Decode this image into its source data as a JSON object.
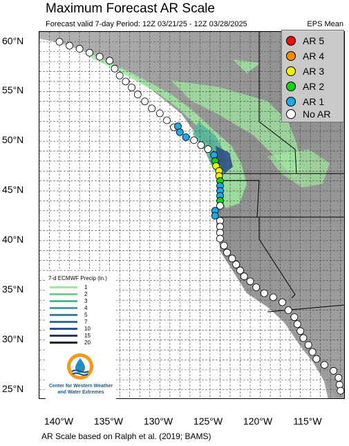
{
  "header": {
    "title": "Maximum Forecast AR Scale",
    "subtitle": "Forecast valid 7-day Period: 12Z 03/21/25 - 12Z 03/28/2025",
    "variant": "EPS Mean"
  },
  "axes": {
    "lat_labels": [
      "60°N",
      "55°N",
      "50°N",
      "45°N",
      "40°N",
      "35°N",
      "30°N",
      "25°N"
    ],
    "lon_labels": [
      "140°W",
      "135°W",
      "130°W",
      "125°W",
      "120°W",
      "115°W"
    ],
    "extent": {
      "lon_min": -142,
      "lon_max": -111.5,
      "lat_min": 24.0,
      "lat_max": 61.0
    }
  },
  "legend": {
    "items": [
      {
        "label": "AR 5",
        "color": "#e8120c"
      },
      {
        "label": "AR 4",
        "color": "#f08c00"
      },
      {
        "label": "AR 3",
        "color": "#f2f200"
      },
      {
        "label": "AR 2",
        "color": "#18d018"
      },
      {
        "label": "AR 1",
        "color": "#1ea8e8"
      },
      {
        "label": "No AR",
        "color": "#ffffff"
      }
    ]
  },
  "precip_legend": {
    "title": "7-d ECMWF Precip (in.)",
    "items": [
      {
        "label": "1",
        "color": "#9fe8a0"
      },
      {
        "label": "2",
        "color": "#6fcf9a"
      },
      {
        "label": "3",
        "color": "#56b69a"
      },
      {
        "label": "4",
        "color": "#4a9f9c"
      },
      {
        "label": "5",
        "color": "#3f869c"
      },
      {
        "label": "7",
        "color": "#366b98"
      },
      {
        "label": "10",
        "color": "#2d508c"
      },
      {
        "label": "15",
        "color": "#28356f"
      },
      {
        "label": "20",
        "color": "#1b1b3a"
      }
    ]
  },
  "logo": {
    "name_line1": "Center for Western Weather",
    "name_line2": "and Water Extremes"
  },
  "footer": "AR Scale based on Ralph et al. (2019; BAMS)",
  "ar_points": [
    {
      "lon": -140.0,
      "lat": 60.0,
      "ar": "No AR"
    },
    {
      "lon": -139.0,
      "lat": 59.6,
      "ar": "No AR"
    },
    {
      "lon": -138.0,
      "lat": 59.3,
      "ar": "No AR"
    },
    {
      "lon": -137.0,
      "lat": 58.9,
      "ar": "No AR"
    },
    {
      "lon": -136.0,
      "lat": 58.5,
      "ar": "No AR"
    },
    {
      "lon": -135.0,
      "lat": 58.1,
      "ar": "No AR"
    },
    {
      "lon": -134.5,
      "lat": 57.3,
      "ar": "No AR"
    },
    {
      "lon": -134.0,
      "lat": 56.6,
      "ar": "No AR"
    },
    {
      "lon": -133.4,
      "lat": 56.0,
      "ar": "No AR"
    },
    {
      "lon": -132.8,
      "lat": 55.4,
      "ar": "No AR"
    },
    {
      "lon": -132.2,
      "lat": 54.7,
      "ar": "No AR"
    },
    {
      "lon": -131.5,
      "lat": 54.0,
      "ar": "No AR"
    },
    {
      "lon": -130.8,
      "lat": 53.3,
      "ar": "No AR"
    },
    {
      "lon": -130.0,
      "lat": 52.8,
      "ar": "No AR"
    },
    {
      "lon": -129.3,
      "lat": 52.1,
      "ar": "No AR"
    },
    {
      "lon": -128.6,
      "lat": 51.4,
      "ar": "No AR"
    },
    {
      "lon": -128.2,
      "lat": 51.5,
      "ar": "AR 1"
    },
    {
      "lon": -128.0,
      "lat": 50.9,
      "ar": "AR 1"
    },
    {
      "lon": -127.4,
      "lat": 50.4,
      "ar": "AR 1"
    },
    {
      "lon": -126.6,
      "lat": 50.1,
      "ar": "No AR"
    },
    {
      "lon": -125.9,
      "lat": 49.6,
      "ar": "No AR"
    },
    {
      "lon": -125.2,
      "lat": 49.2,
      "ar": "No AR"
    },
    {
      "lon": -124.6,
      "lat": 48.6,
      "ar": "AR 1"
    },
    {
      "lon": -124.5,
      "lat": 48.0,
      "ar": "AR 2"
    },
    {
      "lon": -124.4,
      "lat": 47.5,
      "ar": "AR 3"
    },
    {
      "lon": -124.1,
      "lat": 47.0,
      "ar": "AR 3"
    },
    {
      "lon": -124.1,
      "lat": 46.5,
      "ar": "AR 3"
    },
    {
      "lon": -124.0,
      "lat": 46.0,
      "ar": "AR 2"
    },
    {
      "lon": -124.0,
      "lat": 45.5,
      "ar": "AR 1"
    },
    {
      "lon": -124.0,
      "lat": 45.0,
      "ar": "AR 1"
    },
    {
      "lon": -124.0,
      "lat": 44.5,
      "ar": "AR 1"
    },
    {
      "lon": -124.0,
      "lat": 44.0,
      "ar": "AR 2"
    },
    {
      "lon": -124.0,
      "lat": 43.5,
      "ar": "No AR"
    },
    {
      "lon": -124.5,
      "lat": 43.0,
      "ar": "AR 1"
    },
    {
      "lon": -124.5,
      "lat": 42.5,
      "ar": "AR 1"
    },
    {
      "lon": -124.0,
      "lat": 42.0,
      "ar": "No AR"
    },
    {
      "lon": -124.0,
      "lat": 41.4,
      "ar": "No AR"
    },
    {
      "lon": -124.0,
      "lat": 40.8,
      "ar": "No AR"
    },
    {
      "lon": -124.0,
      "lat": 40.2,
      "ar": "No AR"
    },
    {
      "lon": -123.6,
      "lat": 39.5,
      "ar": "No AR"
    },
    {
      "lon": -123.3,
      "lat": 38.8,
      "ar": "No AR"
    },
    {
      "lon": -122.8,
      "lat": 38.2,
      "ar": "No AR"
    },
    {
      "lon": -122.4,
      "lat": 37.6,
      "ar": "No AR"
    },
    {
      "lon": -122.0,
      "lat": 37.0,
      "ar": "No AR"
    },
    {
      "lon": -121.6,
      "lat": 36.4,
      "ar": "No AR"
    },
    {
      "lon": -121.0,
      "lat": 35.9,
      "ar": "No AR"
    },
    {
      "lon": -120.4,
      "lat": 35.3,
      "ar": "No AR"
    },
    {
      "lon": -119.6,
      "lat": 34.7,
      "ar": "No AR"
    },
    {
      "lon": -118.7,
      "lat": 34.3,
      "ar": "No AR"
    },
    {
      "lon": -117.8,
      "lat": 33.8,
      "ar": "No AR"
    },
    {
      "lon": -117.2,
      "lat": 33.0,
      "ar": "No AR"
    },
    {
      "lon": -116.6,
      "lat": 32.3,
      "ar": "No AR"
    },
    {
      "lon": -116.3,
      "lat": 31.6,
      "ar": "No AR"
    },
    {
      "lon": -116.0,
      "lat": 30.9,
      "ar": "No AR"
    },
    {
      "lon": -115.7,
      "lat": 30.2,
      "ar": "No AR"
    },
    {
      "lon": -115.2,
      "lat": 29.5,
      "ar": "No AR"
    },
    {
      "lon": -114.8,
      "lat": 28.8,
      "ar": "No AR"
    },
    {
      "lon": -114.4,
      "lat": 28.1,
      "ar": "No AR"
    },
    {
      "lon": -113.6,
      "lat": 27.5,
      "ar": "No AR"
    },
    {
      "lon": -112.7,
      "lat": 26.9,
      "ar": "No AR"
    },
    {
      "lon": -112.2,
      "lat": 26.2,
      "ar": "No AR"
    },
    {
      "lon": -112.1,
      "lat": 25.5,
      "ar": "No AR"
    },
    {
      "lon": -112.0,
      "lat": 24.9,
      "ar": "No AR"
    }
  ]
}
